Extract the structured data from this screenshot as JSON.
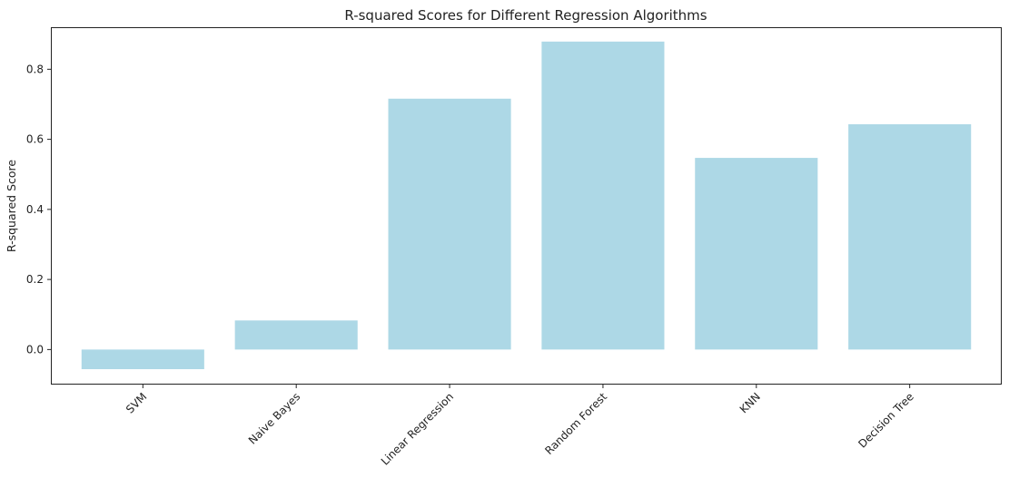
{
  "chart_data": {
    "type": "bar",
    "title": "R-squared Scores for Different Regression Algorithms",
    "xlabel": "",
    "ylabel": "R-squared Score",
    "categories": [
      "SVM",
      "Naive Bayes",
      "Linear Regression",
      "Random Forest",
      "KNN",
      "Decision Tree"
    ],
    "values": [
      -0.056,
      0.083,
      0.716,
      0.879,
      0.547,
      0.643
    ],
    "ylim": [
      -0.1,
      0.92
    ],
    "yticks": [
      0.0,
      0.2,
      0.4,
      0.6,
      0.8
    ],
    "ytick_labels": [
      "0.0",
      "0.2",
      "0.4",
      "0.6",
      "0.8"
    ],
    "bar_color": "#add8e6",
    "grid": false,
    "legend": "none"
  }
}
